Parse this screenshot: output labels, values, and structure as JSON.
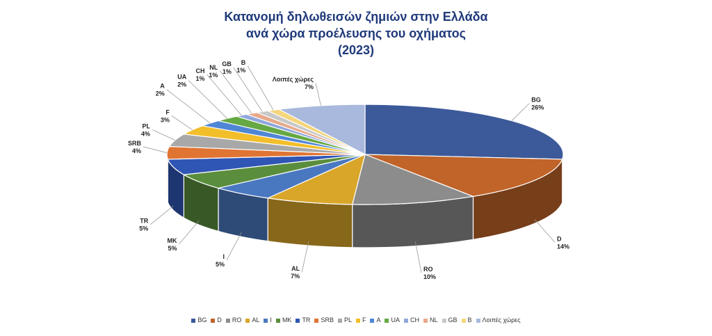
{
  "chart_data": {
    "type": "pie",
    "title_lines": [
      "Κατανομή δηλωθεισών ζημιών στην Ελλάδα",
      "ανά χώρα προέλευσης του οχήματος",
      "(2023)"
    ],
    "slices": [
      {
        "label": "BG",
        "value": 26,
        "value_label": "26%",
        "color": "#3c5a9a"
      },
      {
        "label": "D",
        "value": 14,
        "value_label": "14%",
        "color": "#c0642a"
      },
      {
        "label": "RO",
        "value": 10,
        "value_label": "10%",
        "color": "#8c8c8c"
      },
      {
        "label": "AL",
        "value": 7,
        "value_label": "7%",
        "color": "#d9a62a"
      },
      {
        "label": "I",
        "value": 5,
        "value_label": "5%",
        "color": "#4a78c0"
      },
      {
        "label": "MK",
        "value": 5,
        "value_label": "5%",
        "color": "#5a8e3c"
      },
      {
        "label": "TR",
        "value": 5,
        "value_label": "5%",
        "color": "#2f55b5"
      },
      {
        "label": "SRB",
        "value": 4,
        "value_label": "4%",
        "color": "#e07433"
      },
      {
        "label": "PL",
        "value": 4,
        "value_label": "4%",
        "color": "#a8a8a8"
      },
      {
        "label": "F",
        "value": 3,
        "value_label": "3%",
        "color": "#f2be2a"
      },
      {
        "label": "A",
        "value": 2,
        "value_label": "2%",
        "color": "#4f86d6"
      },
      {
        "label": "UA",
        "value": 2,
        "value_label": "2%",
        "color": "#66a843"
      },
      {
        "label": "CH",
        "value": 1,
        "value_label": "1%",
        "color": "#8fa8dc"
      },
      {
        "label": "NL",
        "value": 1,
        "value_label": "1%",
        "color": "#e8a98a"
      },
      {
        "label": "GB",
        "value": 1,
        "value_label": "1%",
        "color": "#c8c8c8"
      },
      {
        "label": "B",
        "value": 1,
        "value_label": "1%",
        "color": "#f5d67c"
      },
      {
        "label": "Λοιπές χώρες",
        "value": 7,
        "value_label": "7%",
        "color": "#a9b9dd"
      }
    ],
    "legend_position": "bottom"
  }
}
